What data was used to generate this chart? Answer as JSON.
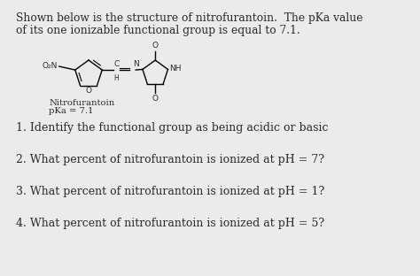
{
  "bg_color": "#ebebeb",
  "text_color": "#2a2a2a",
  "title_line1": "Shown below is the structure of nitrofurantoin.  The pKa value",
  "title_line2": "of its one ionizable functional group is equal to 7.1.",
  "label1": "Nitrofurantoin",
  "label2": "pKa = 7.1",
  "q1": "1. Identify the functional group as being acidic or basic",
  "q2": "2. What percent of nitrofurantoin is ionized at pH = 7?",
  "q3": "3. What percent of nitrofurantoin is ionized at pH = 1?",
  "q4": "4. What percent of nitrofurantoin is ionized at pH = 5?",
  "font_size_title": 8.8,
  "font_size_q": 9.0,
  "font_size_label": 7.2,
  "font_size_struct": 6.5
}
